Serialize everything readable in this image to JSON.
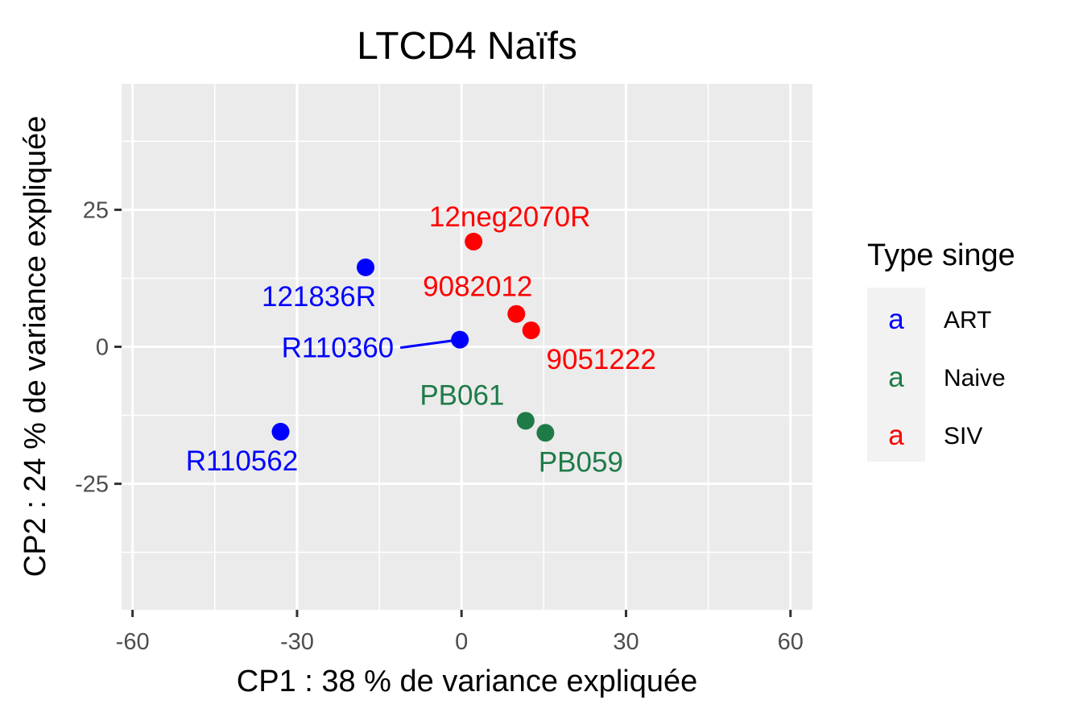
{
  "chart_data": {
    "type": "scatter",
    "title": "LTCD4 Naïfs",
    "xlabel": "CP1 : 38 % de variance expliquée",
    "ylabel": "CP2 : 24 % de variance expliquée",
    "xlim": [
      -62,
      64
    ],
    "ylim": [
      -48,
      48
    ],
    "x_ticks": [
      -60,
      -30,
      0,
      30,
      60
    ],
    "x_tick_labels": [
      "-60",
      "-30",
      "0",
      "30",
      "60"
    ],
    "y_ticks": [
      -25,
      0,
      25
    ],
    "y_tick_labels": [
      "-25",
      "0",
      "25"
    ],
    "grid": true,
    "legend": {
      "title": "Type singe",
      "position": "right",
      "key_glyph": "a",
      "entries": [
        {
          "label": "ART",
          "color": "#0000FF"
        },
        {
          "label": "Naive",
          "color": "#1E7B48"
        },
        {
          "label": "SIV",
          "color": "#FF0000"
        }
      ]
    },
    "points": [
      {
        "label": "121836R",
        "group": "ART",
        "x": -17.5,
        "y": 14.5
      },
      {
        "label": "R110360",
        "group": "ART",
        "x": -0.3,
        "y": 1.3
      },
      {
        "label": "R110562",
        "group": "ART",
        "x": -33.0,
        "y": -15.5
      },
      {
        "label": "12neg2070R",
        "group": "SIV",
        "x": 2.2,
        "y": 19.2
      },
      {
        "label": "9082012",
        "group": "SIV",
        "x": 10.0,
        "y": 6.0
      },
      {
        "label": "9051222",
        "group": "SIV",
        "x": 12.7,
        "y": 3.0
      },
      {
        "label": "PB061",
        "group": "Naive",
        "x": 11.7,
        "y": -13.5
      },
      {
        "label": "PB059",
        "group": "Naive",
        "x": 15.3,
        "y": -15.7
      }
    ],
    "colors": {
      "ART": "#0000FF",
      "Naive": "#1E7B48",
      "SIV": "#FF0000"
    }
  }
}
